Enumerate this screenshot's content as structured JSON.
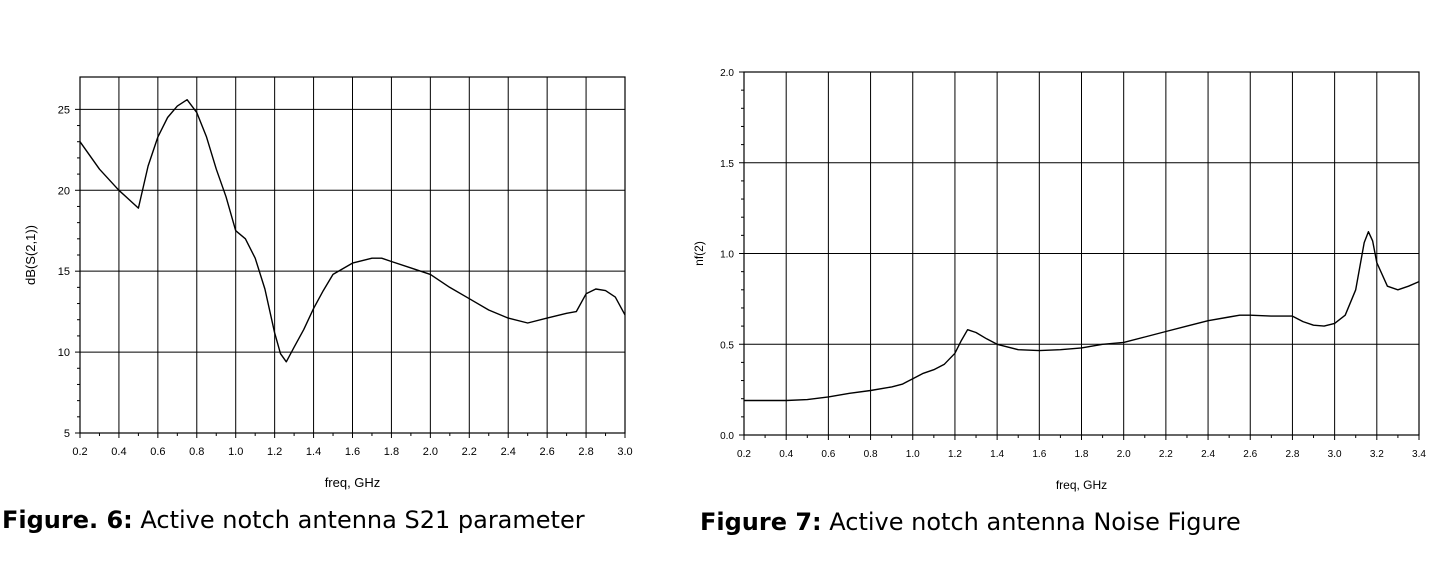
{
  "chart_data": [
    {
      "type": "line",
      "xlabel": "freq, GHz",
      "ylabel": "dB(S(2,1))",
      "xlim": [
        0.2,
        3.0
      ],
      "ylim": [
        5,
        27
      ],
      "xticks": [
        0.2,
        0.4,
        0.6,
        0.8,
        1.0,
        1.2,
        1.4,
        1.6,
        1.8,
        2.0,
        2.2,
        2.4,
        2.6,
        2.8,
        3.0
      ],
      "xtick_labels": [
        "0.2",
        "0.4",
        "0.6",
        "0.8",
        "1.0",
        "1.2",
        "1.4",
        "1.6",
        "1.8",
        "2.0",
        "2.2",
        "2.4",
        "2.6",
        "2.8",
        "3.0"
      ],
      "yticks": [
        5,
        10,
        15,
        20,
        25
      ],
      "ytick_labels": [
        "5",
        "10",
        "15",
        "20",
        "25"
      ],
      "grid": true,
      "series": [
        {
          "x": [
            0.2,
            0.3,
            0.4,
            0.5,
            0.55,
            0.6,
            0.65,
            0.7,
            0.75,
            0.8,
            0.85,
            0.9,
            0.95,
            1.0,
            1.05,
            1.1,
            1.15,
            1.2,
            1.23,
            1.26,
            1.3,
            1.35,
            1.4,
            1.45,
            1.5,
            1.6,
            1.7,
            1.75,
            1.8,
            1.9,
            2.0,
            2.1,
            2.2,
            2.3,
            2.4,
            2.5,
            2.6,
            2.7,
            2.75,
            2.8,
            2.85,
            2.9,
            2.95,
            3.0
          ],
          "y": [
            23.0,
            21.3,
            20.0,
            18.9,
            21.5,
            23.3,
            24.5,
            25.2,
            25.6,
            24.8,
            23.3,
            21.3,
            19.6,
            17.5,
            17.0,
            15.8,
            13.9,
            11.2,
            9.9,
            9.4,
            10.3,
            11.4,
            12.7,
            13.8,
            14.8,
            15.5,
            15.8,
            15.8,
            15.6,
            15.2,
            14.8,
            14.0,
            13.3,
            12.6,
            12.1,
            11.8,
            12.1,
            12.4,
            12.5,
            13.6,
            13.9,
            13.8,
            13.4,
            12.3
          ]
        }
      ]
    },
    {
      "type": "line",
      "xlabel": "freq, GHz",
      "ylabel": "nf(2)",
      "xlim": [
        0.2,
        3.4
      ],
      "ylim": [
        0.0,
        2.0
      ],
      "xticks": [
        0.2,
        0.4,
        0.6,
        0.8,
        1.0,
        1.2,
        1.4,
        1.6,
        1.8,
        2.0,
        2.2,
        2.4,
        2.6,
        2.8,
        3.0,
        3.2,
        3.4
      ],
      "xtick_labels": [
        "0.2",
        "0.4",
        "0.6",
        "0.8",
        "1.0",
        "1.2",
        "1.4",
        "1.6",
        "1.8",
        "2.0",
        "2.2",
        "2.4",
        "2.6",
        "2.8",
        "3.0",
        "3.2",
        "3.4"
      ],
      "yticks": [
        0.0,
        0.5,
        1.0,
        1.5,
        2.0
      ],
      "ytick_labels": [
        "0.0",
        "0.5",
        "1.0",
        "1.5",
        "2.0"
      ],
      "grid": true,
      "series": [
        {
          "x": [
            0.2,
            0.3,
            0.4,
            0.5,
            0.6,
            0.7,
            0.8,
            0.9,
            0.95,
            1.0,
            1.05,
            1.1,
            1.15,
            1.2,
            1.23,
            1.26,
            1.3,
            1.35,
            1.4,
            1.5,
            1.6,
            1.7,
            1.8,
            1.9,
            2.0,
            2.1,
            2.2,
            2.3,
            2.4,
            2.5,
            2.55,
            2.6,
            2.7,
            2.8,
            2.85,
            2.9,
            2.95,
            3.0,
            3.05,
            3.1,
            3.14,
            3.16,
            3.18,
            3.2,
            3.25,
            3.3,
            3.35,
            3.4
          ],
          "y": [
            0.19,
            0.19,
            0.19,
            0.195,
            0.21,
            0.23,
            0.245,
            0.265,
            0.28,
            0.31,
            0.34,
            0.36,
            0.39,
            0.45,
            0.52,
            0.58,
            0.565,
            0.53,
            0.5,
            0.47,
            0.465,
            0.47,
            0.48,
            0.5,
            0.51,
            0.54,
            0.57,
            0.6,
            0.63,
            0.65,
            0.66,
            0.66,
            0.655,
            0.655,
            0.625,
            0.605,
            0.6,
            0.615,
            0.66,
            0.8,
            1.06,
            1.12,
            1.07,
            0.95,
            0.82,
            0.8,
            0.82,
            0.845
          ]
        }
      ]
    }
  ],
  "captions": [
    {
      "label": "Figure. 6:",
      "text": " Active notch antenna S21 parameter"
    },
    {
      "label": "Figure 7:",
      "text": " Active notch antenna Noise Figure"
    }
  ]
}
